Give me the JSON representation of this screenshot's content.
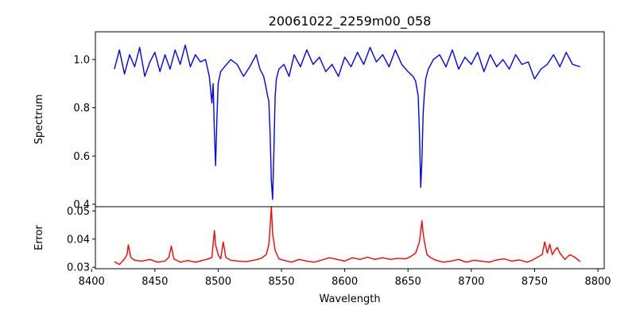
{
  "chart_data": [
    {
      "type": "line",
      "title": "20061022_2259m00_058",
      "xlabel": "",
      "ylabel": "Spectrum",
      "xlim": [
        8403,
        8805
      ],
      "ylim": [
        0.39,
        1.115
      ],
      "yticks": [
        "0.4",
        "0.6",
        "0.8",
        "1.0"
      ],
      "ytick_values": [
        0.4,
        0.6,
        0.8,
        1.0
      ],
      "grid": false,
      "series": [
        {
          "name": "",
          "color": "#0000ff",
          "x": [
            8418,
            8422,
            8426,
            8430,
            8434,
            8438,
            8442,
            8446,
            8450,
            8454,
            8458,
            8462,
            8466,
            8470,
            8474,
            8478,
            8482,
            8486,
            8490,
            8493,
            8495,
            8496,
            8497,
            8498,
            8499,
            8500,
            8502,
            8505,
            8510,
            8515,
            8520,
            8525,
            8530,
            8533,
            8536,
            8538,
            8539,
            8540,
            8541,
            8542,
            8543,
            8544,
            8545,
            8546,
            8548,
            8552,
            8556,
            8560,
            8565,
            8570,
            8575,
            8580,
            8585,
            8590,
            8595,
            8600,
            8605,
            8610,
            8615,
            8620,
            8625,
            8630,
            8635,
            8640,
            8645,
            8650,
            8654,
            8656,
            8658,
            8659,
            8660,
            8661,
            8662,
            8663,
            8664,
            8666,
            8670,
            8675,
            8680,
            8685,
            8690,
            8695,
            8700,
            8705,
            8710,
            8715,
            8720,
            8725,
            8730,
            8735,
            8740,
            8745,
            8750,
            8755,
            8760,
            8765,
            8770,
            8775,
            8780,
            8786
          ],
          "y": [
            0.96,
            1.04,
            0.94,
            1.02,
            0.97,
            1.05,
            0.93,
            0.99,
            1.03,
            0.95,
            1.02,
            0.96,
            1.04,
            0.98,
            1.06,
            0.97,
            1.02,
            0.99,
            1.0,
            0.93,
            0.82,
            0.9,
            0.7,
            0.56,
            0.75,
            0.9,
            0.95,
            0.97,
            1.0,
            0.98,
            0.93,
            0.97,
            1.02,
            0.96,
            0.93,
            0.88,
            0.85,
            0.83,
            0.7,
            0.5,
            0.42,
            0.62,
            0.85,
            0.92,
            0.96,
            0.98,
            0.93,
            1.02,
            0.97,
            1.04,
            0.98,
            1.01,
            0.95,
            0.98,
            0.93,
            1.01,
            0.97,
            1.03,
            0.98,
            1.05,
            0.99,
            1.02,
            0.97,
            1.04,
            0.98,
            0.95,
            0.93,
            0.91,
            0.85,
            0.7,
            0.47,
            0.58,
            0.78,
            0.86,
            0.92,
            0.96,
            1.0,
            1.02,
            0.97,
            1.04,
            0.96,
            1.01,
            0.98,
            1.03,
            0.95,
            1.02,
            0.97,
            1.0,
            0.96,
            1.02,
            0.98,
            0.99,
            0.92,
            0.96,
            0.98,
            1.02,
            0.97,
            1.03,
            0.98,
            0.97
          ]
        }
      ]
    },
    {
      "type": "line",
      "title": "",
      "xlabel": "Wavelength",
      "ylabel": "Error",
      "xlim": [
        8403,
        8805
      ],
      "ylim": [
        0.0295,
        0.0515
      ],
      "xticks": [
        "8400",
        "8450",
        "8500",
        "8550",
        "8600",
        "8650",
        "8700",
        "8750",
        "8800"
      ],
      "xtick_values": [
        8400,
        8450,
        8500,
        8550,
        8600,
        8650,
        8700,
        8750,
        8800
      ],
      "yticks": [
        "0.03",
        "0.04",
        "0.05"
      ],
      "ytick_values": [
        0.03,
        0.04,
        0.05
      ],
      "grid": false,
      "series": [
        {
          "name": "",
          "color": "#ff0000",
          "x": [
            8418,
            8422,
            8426,
            8428,
            8429,
            8431,
            8434,
            8440,
            8446,
            8452,
            8458,
            8461,
            8463,
            8465,
            8470,
            8476,
            8482,
            8488,
            8493,
            8495,
            8497,
            8498,
            8500,
            8502,
            8504,
            8506,
            8510,
            8516,
            8522,
            8528,
            8534,
            8538,
            8540,
            8541,
            8542,
            8543,
            8545,
            8548,
            8552,
            8558,
            8564,
            8570,
            8576,
            8582,
            8588,
            8594,
            8600,
            8606,
            8612,
            8618,
            8624,
            8630,
            8636,
            8642,
            8648,
            8652,
            8656,
            8659,
            8661,
            8662,
            8663,
            8665,
            8668,
            8672,
            8678,
            8684,
            8690,
            8696,
            8702,
            8708,
            8714,
            8720,
            8726,
            8732,
            8738,
            8744,
            8748,
            8752,
            8756,
            8758,
            8760,
            8762,
            8764,
            8766,
            8768,
            8770,
            8774,
            8778,
            8782,
            8786
          ],
          "y": [
            0.032,
            0.031,
            0.033,
            0.0345,
            0.038,
            0.0335,
            0.0325,
            0.0322,
            0.0328,
            0.0318,
            0.0322,
            0.0335,
            0.0375,
            0.033,
            0.0318,
            0.0324,
            0.0318,
            0.0325,
            0.0331,
            0.0335,
            0.043,
            0.038,
            0.0345,
            0.033,
            0.039,
            0.0335,
            0.0325,
            0.0322,
            0.032,
            0.0325,
            0.0332,
            0.0345,
            0.038,
            0.044,
            0.0515,
            0.042,
            0.036,
            0.033,
            0.0325,
            0.0318,
            0.0328,
            0.0322,
            0.0318,
            0.0326,
            0.0334,
            0.0328,
            0.0322,
            0.0334,
            0.0328,
            0.0336,
            0.0328,
            0.0334,
            0.0328,
            0.0332,
            0.033,
            0.0338,
            0.035,
            0.039,
            0.0465,
            0.042,
            0.039,
            0.0345,
            0.0334,
            0.0325,
            0.0318,
            0.0322,
            0.0328,
            0.0318,
            0.0325,
            0.0322,
            0.0318,
            0.0326,
            0.033,
            0.0322,
            0.0326,
            0.0318,
            0.0325,
            0.0335,
            0.0345,
            0.039,
            0.035,
            0.0382,
            0.0345,
            0.036,
            0.037,
            0.035,
            0.0328,
            0.0345,
            0.0335,
            0.032
          ]
        }
      ]
    }
  ]
}
